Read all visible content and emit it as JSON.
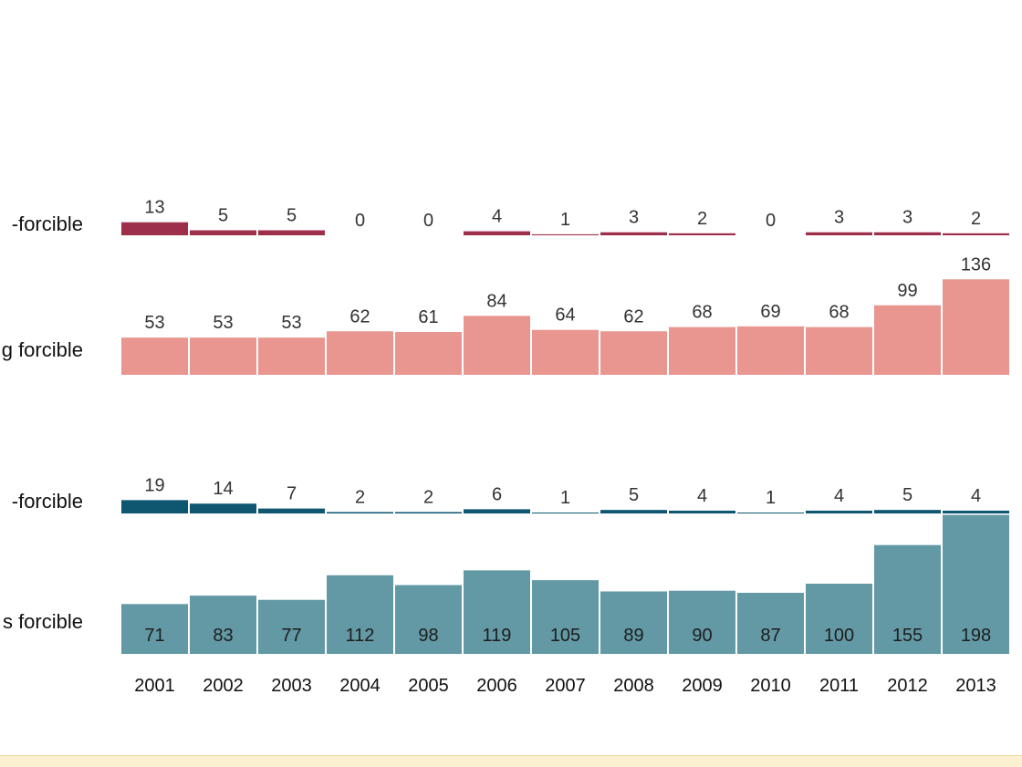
{
  "chart_data": {
    "type": "bar",
    "categories": [
      "2001",
      "2002",
      "2003",
      "2004",
      "2005",
      "2006",
      "2007",
      "2008",
      "2009",
      "2010",
      "2011",
      "2012",
      "2013"
    ],
    "series": [
      {
        "name": "-forcible",
        "color": "#9e2f4a",
        "values": [
          13,
          5,
          5,
          0,
          0,
          4,
          1,
          3,
          2,
          0,
          3,
          3,
          2
        ]
      },
      {
        "name": "g forcible",
        "color": "#e8968f",
        "values": [
          53,
          53,
          53,
          62,
          61,
          84,
          64,
          62,
          68,
          69,
          68,
          99,
          136
        ]
      },
      {
        "name": "-forcible",
        "color": "#0f5670",
        "values": [
          19,
          14,
          7,
          2,
          2,
          6,
          1,
          5,
          4,
          1,
          4,
          5,
          4
        ]
      },
      {
        "name": "s forcible",
        "color": "#6299a5",
        "values": [
          71,
          83,
          77,
          112,
          98,
          119,
          105,
          89,
          90,
          87,
          100,
          155,
          198
        ]
      }
    ],
    "xlabel": "",
    "ylabel": "",
    "grid": false
  }
}
